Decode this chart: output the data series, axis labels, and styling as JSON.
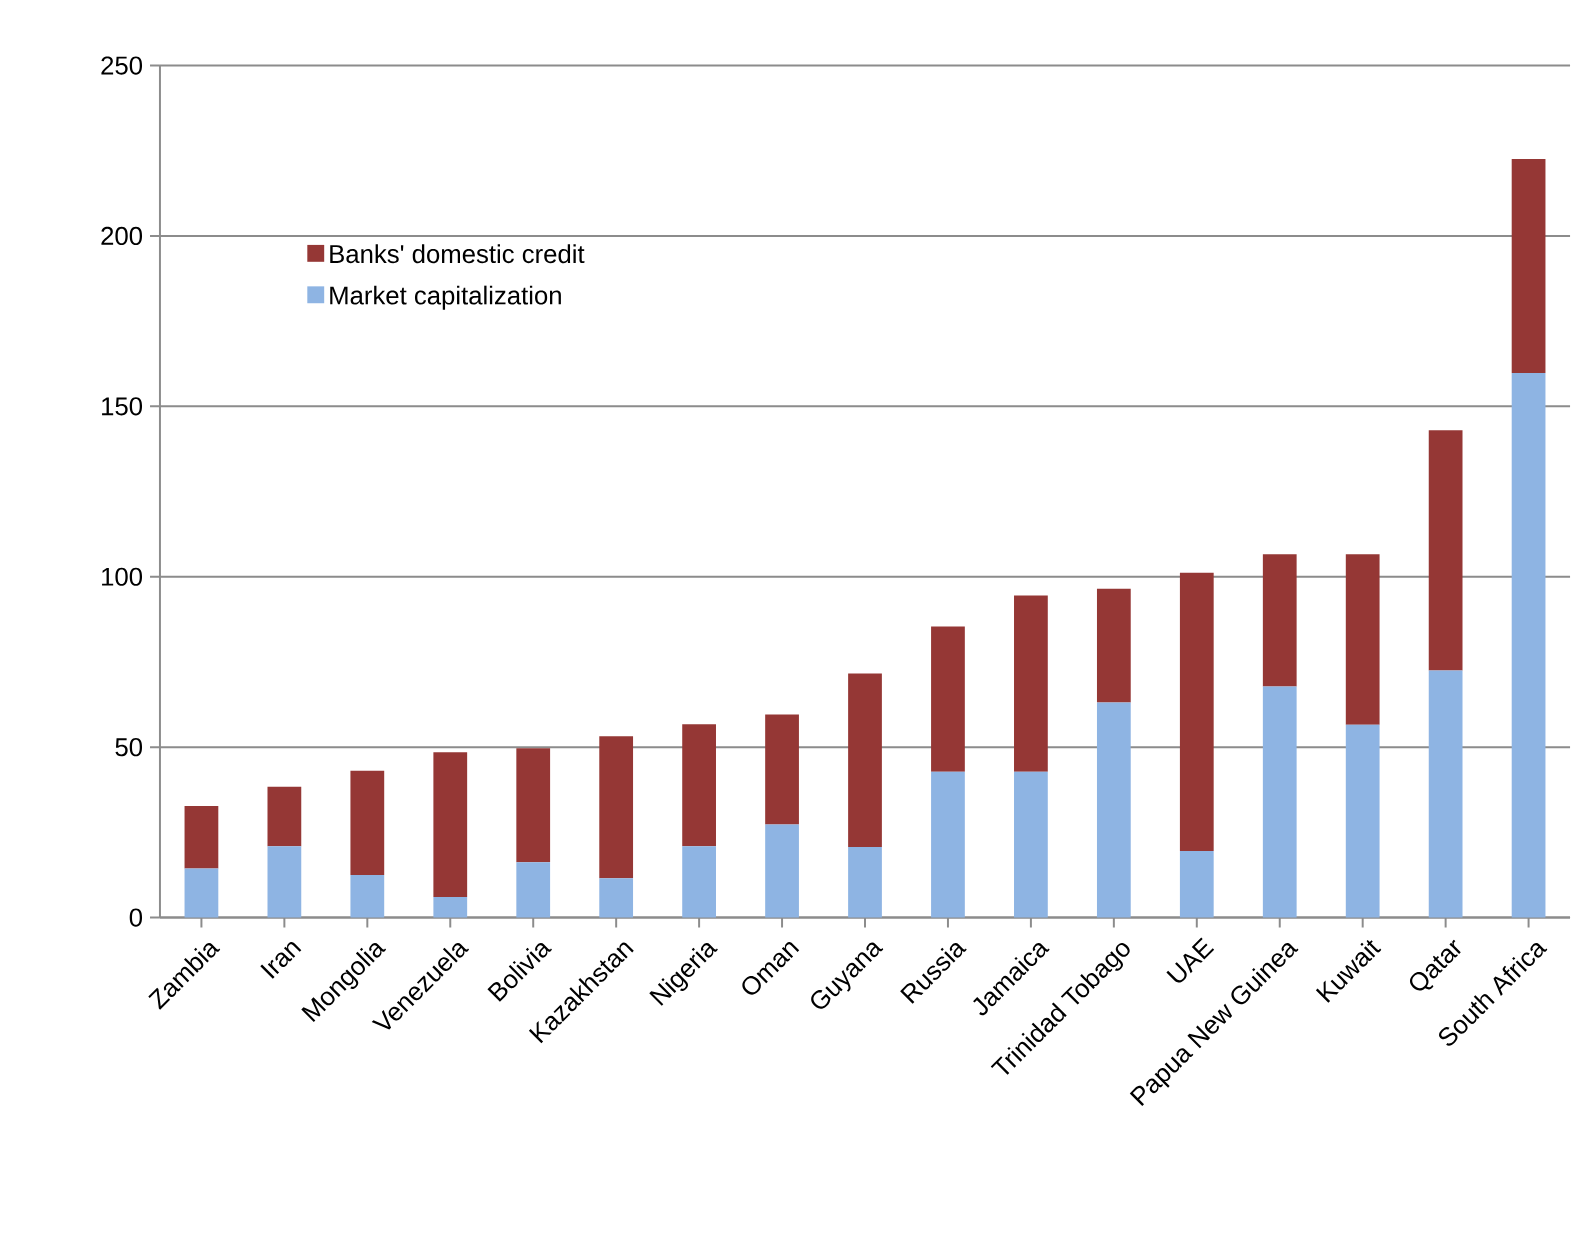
{
  "chart_data": {
    "type": "bar",
    "stacked": true,
    "categories": [
      "Zambia",
      "Iran",
      "Mongolia",
      "Venezuela",
      "Bolivia",
      "Kazakhstan",
      "Nigeria",
      "Oman",
      "Guyana",
      "Russia",
      "Jamaica",
      "Trinidad Tobago",
      "UAE",
      "Papua New Guinea",
      "Kuwait",
      "Qatar",
      "South Africa"
    ],
    "series": [
      {
        "name": "Market capitalization",
        "color": "#8eb4e3",
        "values": [
          14.4,
          20.9,
          12.5,
          6.0,
          16.2,
          11.5,
          20.9,
          27.3,
          20.7,
          42.8,
          42.8,
          63.1,
          19.5,
          67.8,
          56.6,
          72.5,
          159.8
        ]
      },
      {
        "name": "Banks' domestic credit",
        "color": "#953735",
        "values": [
          18.3,
          17.5,
          30.6,
          42.5,
          33.5,
          41.7,
          35.8,
          32.3,
          50.9,
          42.6,
          51.7,
          33.4,
          81.7,
          38.8,
          50.0,
          70.5,
          62.8
        ]
      }
    ],
    "ylim": [
      0,
      250
    ],
    "yticks": [
      0,
      50,
      100,
      150,
      200,
      250
    ],
    "grid": "y",
    "legend": "top left"
  }
}
